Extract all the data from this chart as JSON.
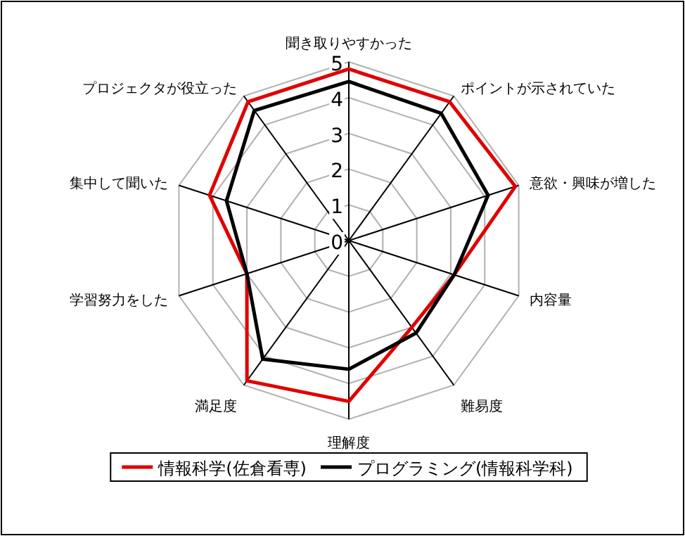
{
  "chart_data": {
    "type": "radar",
    "categories": [
      "聞き取りやすかった",
      "ポイントが示されていた",
      "意欲・興味が増した",
      "内容量",
      "難易度",
      "理解度",
      "満足度",
      "学習努力をした",
      "集中して聞いた",
      "プロジェクタが役立った"
    ],
    "series": [
      {
        "name": "情報科学(佐倉看専)",
        "color": "#e00000",
        "values": [
          4.8,
          4.8,
          4.9,
          3.1,
          3.0,
          4.5,
          4.85,
          3.0,
          4.1,
          4.8
        ]
      },
      {
        "name": "プログラミング(情報科学科)",
        "color": "#000000",
        "values": [
          4.45,
          4.4,
          4.1,
          3.1,
          3.2,
          3.6,
          4.1,
          3.0,
          3.6,
          4.5
        ]
      }
    ],
    "ylim": [
      0,
      5
    ],
    "yticks": [
      0,
      1,
      2,
      3,
      4,
      5
    ],
    "grid": true,
    "legend": "bottom"
  }
}
